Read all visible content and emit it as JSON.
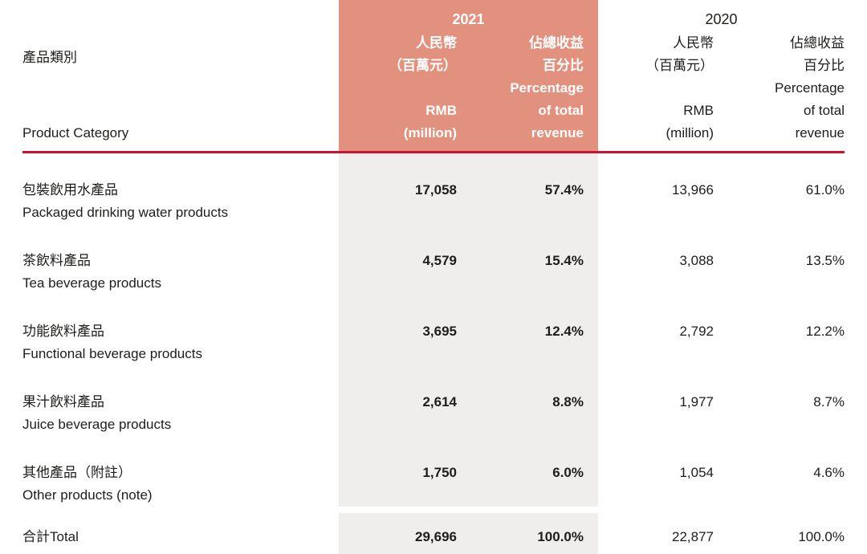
{
  "colors": {
    "salmon": "#e2917e",
    "gray": "#f0eeec",
    "red": "#d1112b",
    "text": "#1d1d1b"
  },
  "header": {
    "category_zh": "產品類別",
    "category_en": "Product Category",
    "groups": [
      {
        "year": "2021"
      },
      {
        "year": "2020"
      }
    ],
    "rmb_lines": [
      "人民幣",
      "（百萬元）",
      "RMB",
      "(million)"
    ],
    "pct_lines": [
      "佔總收益",
      "百分比",
      "Percentage",
      "of total",
      "revenue"
    ]
  },
  "rows": [
    {
      "zh": "包裝飲用水產品",
      "en": "Packaged drinking water products",
      "y2021_rmb": "17,058",
      "y2021_pct": "57.4%",
      "y2020_rmb": "13,966",
      "y2020_pct": "61.0%"
    },
    {
      "zh": "茶飲料產品",
      "en": "Tea beverage products",
      "y2021_rmb": "4,579",
      "y2021_pct": "15.4%",
      "y2020_rmb": "3,088",
      "y2020_pct": "13.5%"
    },
    {
      "zh": "功能飲料產品",
      "en": "Functional beverage products",
      "y2021_rmb": "3,695",
      "y2021_pct": "12.4%",
      "y2020_rmb": "2,792",
      "y2020_pct": "12.2%"
    },
    {
      "zh": "果汁飲料產品",
      "en": "Juice beverage products",
      "y2021_rmb": "2,614",
      "y2021_pct": "8.8%",
      "y2020_rmb": "1,977",
      "y2020_pct": "8.7%"
    },
    {
      "zh": "其他產品（附註）",
      "en": "Other products (note)",
      "y2021_rmb": "1,750",
      "y2021_pct": "6.0%",
      "y2020_rmb": "1,054",
      "y2020_pct": "4.6%"
    }
  ],
  "total": {
    "label": "合計Total",
    "y2021_rmb": "29,696",
    "y2021_pct": "100.0%",
    "y2020_rmb": "22,877",
    "y2020_pct": "100.0%"
  }
}
